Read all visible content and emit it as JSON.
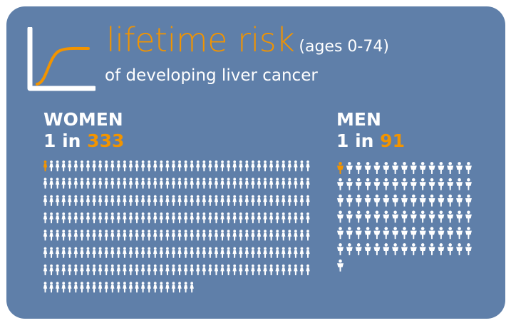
{
  "title": {
    "main": "lifetime risk",
    "ages": "(ages 0-74)",
    "subtitle": "of developing liver cancer"
  },
  "groups": {
    "women": {
      "label": "WOMEN",
      "prefix": "1 in ",
      "value": "333",
      "total": 333,
      "highlighted": 1,
      "per_row": 44
    },
    "men": {
      "label": "MEN",
      "prefix": "1 in ",
      "value": "91",
      "total": 91,
      "highlighted": 1,
      "per_row": 15
    }
  },
  "colors": {
    "background": "#5f7fa9",
    "accent": "#f29400",
    "figure": "#ffffff"
  },
  "icons": {
    "curve": "risk-curve-icon",
    "woman": "woman-figure-icon",
    "man": "man-figure-icon"
  }
}
